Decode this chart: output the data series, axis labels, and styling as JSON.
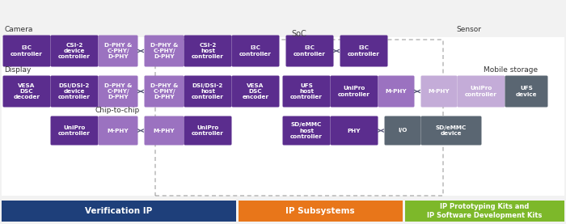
{
  "bg_color": "#f2f2f2",
  "dark_purple": "#5b2d8e",
  "medium_purple": "#9b72c0",
  "light_purple": "#c4acd8",
  "dark_gray": "#5a6672",
  "blue_bar": "#1e3f7a",
  "orange_bar": "#e8761a",
  "green_bar": "#7db82a",
  "white": "#ffffff",
  "soc_label": "SoC",
  "camera_label": "Camera",
  "display_label": "Display",
  "chip_label": "Chip-to-chip",
  "sensor_label": "Sensor",
  "mobile_label": "Mobile storage",
  "bottom_labels": [
    "Verification IP",
    "IP Subsystems",
    "IP Prototyping Kits and\nIP Software Development Kits"
  ]
}
